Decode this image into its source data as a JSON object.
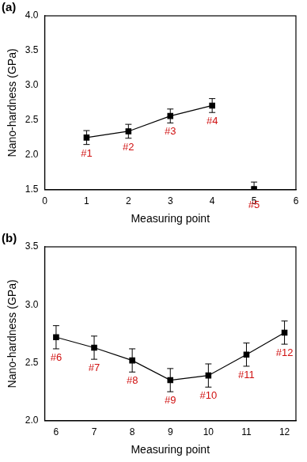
{
  "chart_data": [
    {
      "type": "scatter",
      "title": "(a)",
      "x_label": "Measuring point",
      "y_label": "Nano-hardness (GPa)",
      "xlim": [
        0,
        6
      ],
      "xticks": [
        0,
        1,
        2,
        3,
        4,
        5,
        6
      ],
      "ylim": [
        1.5,
        4.0
      ],
      "yticks": [
        1.5,
        {
          "value": 2,
          "label": "2.0"
        },
        2.5,
        {
          "value": 3,
          "label": "3.0"
        },
        3.5,
        {
          "value": 4,
          "label": "4.0"
        }
      ],
      "grid": false,
      "series": [
        {
          "color": "#000000",
          "marker": "square",
          "line_style": "solid",
          "x": [
            1,
            2,
            3,
            4
          ],
          "values": [
            2.25,
            2.34,
            2.56,
            2.71
          ],
          "errors": [
            0.1,
            0.1,
            0.1,
            0.1
          ],
          "point_labels": [
            "#1",
            "#2",
            "#3",
            "#4"
          ]
        },
        {
          "color": "#000000",
          "marker": "square",
          "line_style": "none",
          "x": [
            5
          ],
          "values": [
            1.51
          ],
          "errors": [
            0.1
          ],
          "point_labels": [
            "#5"
          ]
        }
      ]
    },
    {
      "type": "scatter",
      "title": "(b)",
      "x_label": "Measuring point",
      "y_label": "Nano-hardness (GPa)",
      "xlim": [
        5.7,
        12.3
      ],
      "xticks": [
        6,
        7,
        8,
        9,
        10,
        11,
        12
      ],
      "ylim": [
        2.0,
        3.5
      ],
      "yticks": [
        {
          "value": 2,
          "label": "2.0"
        },
        2.5,
        {
          "value": 3,
          "label": "3.0"
        },
        3.5
      ],
      "grid": false,
      "series": [
        {
          "color": "#000000",
          "marker": "square",
          "line_style": "solid",
          "x": [
            6,
            7,
            8,
            9,
            10,
            11,
            12
          ],
          "values": [
            2.72,
            2.63,
            2.52,
            2.35,
            2.39,
            2.57,
            2.76
          ],
          "errors": [
            0.1,
            0.1,
            0.1,
            0.1,
            0.1,
            0.1,
            0.1
          ],
          "point_labels": [
            "#6",
            "#7",
            "#8",
            "#9",
            "#10",
            "#11",
            "#12"
          ]
        }
      ]
    }
  ]
}
